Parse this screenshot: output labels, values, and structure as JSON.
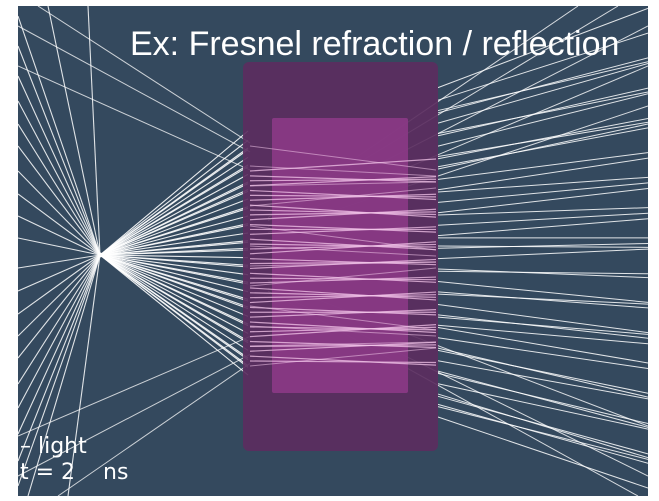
{
  "title": "Ex: Fresnel refraction / reflection",
  "legend": {
    "light_label": "– light",
    "time_prefix": "t = ",
    "time_value": "2",
    "time_unit": "ns"
  },
  "colors": {
    "background": "#34495e",
    "outer_block": "#5b2e5f",
    "inner_block": "#8a3a86",
    "ray": "#ffffff",
    "ray_inside": "#f3c6ea"
  }
}
